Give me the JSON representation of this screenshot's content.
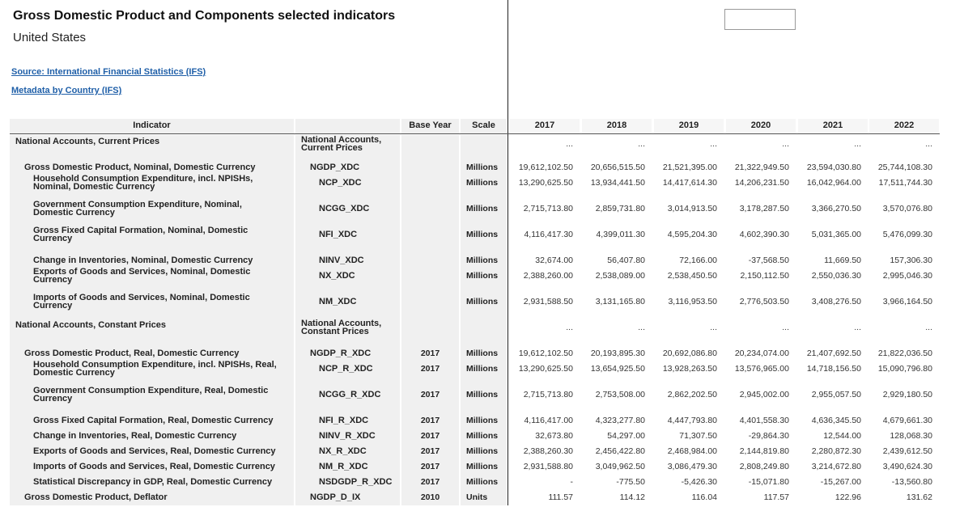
{
  "header": {
    "title": "Gross Domestic Product and Components selected indicators",
    "subtitle": "United States",
    "links": [
      "Source: International Financial Statistics (IFS)",
      "Metadata by Country (IFS)"
    ]
  },
  "table": {
    "columns": [
      "Indicator",
      "Base Year",
      "Scale",
      "2017",
      "2018",
      "2019",
      "2020",
      "2021",
      "2022"
    ],
    "rows": [
      {
        "indicator": "National Accounts, Current Prices",
        "code": "National Accounts, Current Prices",
        "base_year": null,
        "scale": null,
        "values": [
          "...",
          "...",
          "...",
          "...",
          "...",
          "..."
        ]
      },
      {
        "indicator": "Gross Domestic Product, Nominal, Domestic Currency",
        "code": "NGDP_XDC",
        "base_year": null,
        "scale": "Millions",
        "values": [
          "19,612,102.50",
          "20,656,515.50",
          "21,521,395.00",
          "21,322,949.50",
          "23,594,030.80",
          "25,744,108.30"
        ]
      },
      {
        "indicator": "Household Consumption Expenditure, incl. NPISHs, Nominal, Domestic Currency",
        "code": "NCP_XDC",
        "base_year": null,
        "scale": "Millions",
        "values": [
          "13,290,625.50",
          "13,934,441.50",
          "14,417,614.30",
          "14,206,231.50",
          "16,042,964.00",
          "17,511,744.30"
        ]
      },
      {
        "indicator": "Government Consumption Expenditure, Nominal, Domestic Currency",
        "code": "NCGG_XDC",
        "base_year": null,
        "scale": "Millions",
        "values": [
          "2,715,713.80",
          "2,859,731.80",
          "3,014,913.50",
          "3,178,287.50",
          "3,366,270.50",
          "3,570,076.80"
        ]
      },
      {
        "indicator": "Gross Fixed Capital Formation, Nominal, Domestic Currency",
        "code": "NFI_XDC",
        "base_year": null,
        "scale": "Millions",
        "values": [
          "4,116,417.30",
          "4,399,011.30",
          "4,595,204.30",
          "4,602,390.30",
          "5,031,365.00",
          "5,476,099.30"
        ]
      },
      {
        "indicator": "Change in Inventories, Nominal, Domestic Currency",
        "code": "NINV_XDC",
        "base_year": null,
        "scale": "Millions",
        "values": [
          "32,674.00",
          "56,407.80",
          "72,166.00",
          "-37,568.50",
          "11,669.50",
          "157,306.30"
        ]
      },
      {
        "indicator": "Exports of Goods and Services, Nominal, Domestic Currency",
        "code": "NX_XDC",
        "base_year": null,
        "scale": "Millions",
        "values": [
          "2,388,260.00",
          "2,538,089.00",
          "2,538,450.50",
          "2,150,112.50",
          "2,550,036.30",
          "2,995,046.30"
        ]
      },
      {
        "indicator": "Imports of Goods and Services, Nominal, Domestic Currency",
        "code": "NM_XDC",
        "base_year": null,
        "scale": "Millions",
        "values": [
          "2,931,588.50",
          "3,131,165.80",
          "3,116,953.50",
          "2,776,503.50",
          "3,408,276.50",
          "3,966,164.50"
        ]
      },
      {
        "indicator": "National Accounts, Constant Prices",
        "code": "National Accounts, Constant Prices",
        "base_year": null,
        "scale": null,
        "values": [
          "...",
          "...",
          "...",
          "...",
          "...",
          "..."
        ]
      },
      {
        "indicator": "Gross Domestic Product, Real, Domestic Currency",
        "code": "NGDP_R_XDC",
        "base_year": "2017",
        "scale": "Millions",
        "values": [
          "19,612,102.50",
          "20,193,895.30",
          "20,692,086.80",
          "20,234,074.00",
          "21,407,692.50",
          "21,822,036.50"
        ]
      },
      {
        "indicator": "Household Consumption Expenditure, incl. NPISHs, Real, Domestic Currency",
        "code": "NCP_R_XDC",
        "base_year": "2017",
        "scale": "Millions",
        "values": [
          "13,290,625.50",
          "13,654,925.50",
          "13,928,263.50",
          "13,576,965.00",
          "14,718,156.50",
          "15,090,796.80"
        ]
      },
      {
        "indicator": "Government Consumption Expenditure, Real, Domestic Currency",
        "code": "NCGG_R_XDC",
        "base_year": "2017",
        "scale": "Millions",
        "values": [
          "2,715,713.80",
          "2,753,508.00",
          "2,862,202.50",
          "2,945,002.00",
          "2,955,057.50",
          "2,929,180.50"
        ]
      },
      {
        "indicator": "Gross Fixed Capital Formation, Real, Domestic Currency",
        "code": "NFI_R_XDC",
        "base_year": "2017",
        "scale": "Millions",
        "values": [
          "4,116,417.00",
          "4,323,277.80",
          "4,447,793.80",
          "4,401,558.30",
          "4,636,345.50",
          "4,679,661.30"
        ]
      },
      {
        "indicator": "Change in Inventories, Real, Domestic Currency",
        "code": "NINV_R_XDC",
        "base_year": "2017",
        "scale": "Millions",
        "values": [
          "32,673.80",
          "54,297.00",
          "71,307.50",
          "-29,864.30",
          "12,544.00",
          "128,068.30"
        ]
      },
      {
        "indicator": "Exports of Goods and Services, Real, Domestic Currency",
        "code": "NX_R_XDC",
        "base_year": "2017",
        "scale": "Millions",
        "values": [
          "2,388,260.30",
          "2,456,422.80",
          "2,468,984.00",
          "2,144,819.80",
          "2,280,872.30",
          "2,439,612.50"
        ]
      },
      {
        "indicator": "Imports of Goods and Services, Real, Domestic Currency",
        "code": "NM_R_XDC",
        "base_year": "2017",
        "scale": "Millions",
        "values": [
          "2,931,588.80",
          "3,049,962.50",
          "3,086,479.30",
          "2,808,249.80",
          "3,214,672.80",
          "3,490,624.30"
        ]
      },
      {
        "indicator": "Statistical Discrepancy in GDP, Real, Domestic Currency",
        "code": "NSDGDP_R_XDC",
        "base_year": "2017",
        "scale": "Millions",
        "values": [
          "-",
          "-775.50",
          "-5,426.30",
          "-15,071.80",
          "-15,267.00",
          "-13,560.80"
        ]
      },
      {
        "indicator": "Gross Domestic Product, Deflator",
        "code": "NGDP_D_IX",
        "base_year": "2010",
        "scale": "Units",
        "values": [
          "111.57",
          "114.12",
          "116.04",
          "117.57",
          "122.96",
          "131.62"
        ]
      }
    ]
  }
}
